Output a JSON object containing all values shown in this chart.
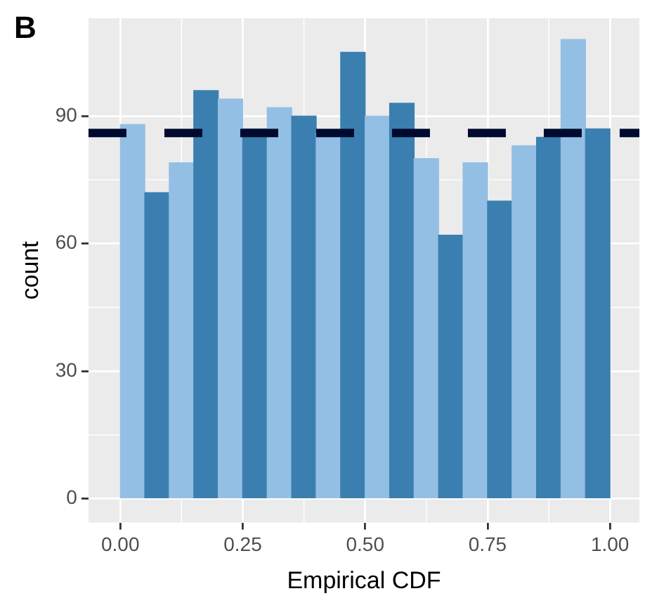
{
  "chart_data": {
    "type": "histogram",
    "title": "B",
    "xlabel": "Empirical CDF",
    "ylabel": "count",
    "bins": [
      0,
      0.05,
      0.1,
      0.15,
      0.2,
      0.25,
      0.3,
      0.35,
      0.4,
      0.45,
      0.5,
      0.55,
      0.6,
      0.65,
      0.7,
      0.75,
      0.8,
      0.85,
      0.9,
      0.95,
      1
    ],
    "values": [
      88,
      72,
      79,
      96,
      94,
      87,
      92,
      90,
      86,
      105,
      90,
      93,
      80,
      62,
      79,
      70,
      83,
      85,
      108,
      87
    ],
    "colors": [
      "#93bfe4",
      "#3a7fb0",
      "#93bfe4",
      "#3a7fb0",
      "#93bfe4",
      "#3a7fb0",
      "#93bfe4",
      "#3a7fb0",
      "#93bfe4",
      "#3a7fb0",
      "#93bfe4",
      "#3a7fb0",
      "#93bfe4",
      "#3a7fb0",
      "#93bfe4",
      "#3a7fb0",
      "#93bfe4",
      "#3a7fb0",
      "#93bfe4",
      "#3a7fb0"
    ],
    "xlim": [
      -0.065,
      1.06
    ],
    "ylim": [
      -5.6,
      113
    ],
    "xticks": [
      {
        "value": 0,
        "label": "0.00"
      },
      {
        "value": 0.25,
        "label": "0.25"
      },
      {
        "value": 0.5,
        "label": "0.50"
      },
      {
        "value": 0.75,
        "label": "0.75"
      },
      {
        "value": 1,
        "label": "1.00"
      }
    ],
    "yticks": [
      0,
      30,
      60,
      90
    ],
    "ref_lines": [
      {
        "axis": "y",
        "value": 86,
        "color": "#000a2e",
        "line_style": "dashed"
      }
    ],
    "grid": true
  }
}
